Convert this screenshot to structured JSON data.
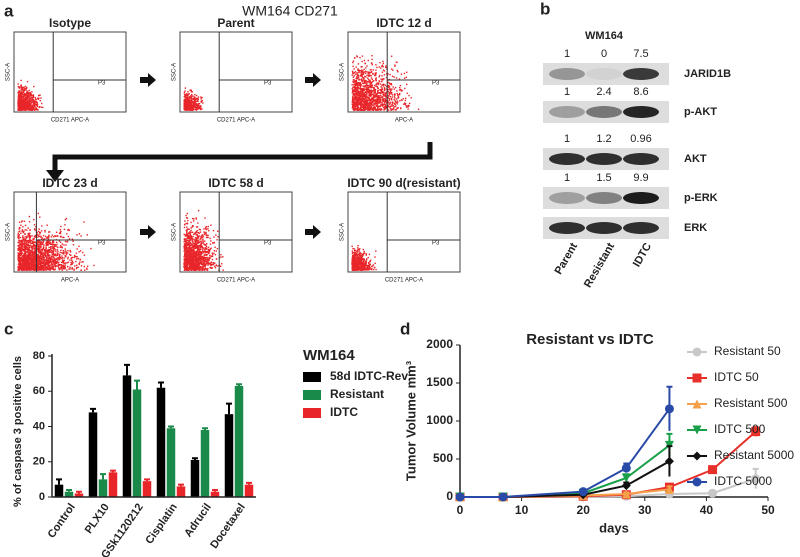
{
  "panel_a": {
    "letter": "a",
    "title": "WM164 CD271",
    "gate": "P3",
    "y_label": "SSC-A",
    "plots": [
      {
        "label": "Isotype",
        "x_label": "CD271 APC-A"
      },
      {
        "label": "Parent",
        "x_label": "CD271 APC-A"
      },
      {
        "label": "IDTC 12 d",
        "x_label": "APC-A"
      },
      {
        "label": "IDTC 23 d",
        "x_label": "APC-A"
      },
      {
        "label": "IDTC 58 d",
        "x_label": "CD271 APC-A"
      },
      {
        "label": "IDTC 90 d(resistant)",
        "x_label": "CD271 APC-A"
      }
    ]
  },
  "panel_b": {
    "letter": "b",
    "title": "WM164",
    "lanes": [
      "Parent",
      "Resistant",
      "IDTC"
    ],
    "rows": [
      {
        "label": "JARID1B",
        "values": [
          1,
          0,
          7.5
        ]
      },
      {
        "label": "p-AKT",
        "values": [
          1,
          2.4,
          8.6
        ]
      },
      {
        "label": "AKT",
        "values": [
          1,
          1.2,
          0.96
        ]
      },
      {
        "label": "p-ERK",
        "values": [
          1,
          1.5,
          9.9
        ]
      },
      {
        "label": "ERK"
      }
    ]
  },
  "chart_data": [
    {
      "type": "bar",
      "panel": "c",
      "legend_title": "WM164",
      "y_label": "% of caspase 3 positive cells",
      "categories": [
        "Control",
        "PLX10",
        "GSk1120212",
        "Cisplatin",
        "Adrucil",
        "Docetaxel"
      ],
      "ylim": [
        0,
        80
      ],
      "yticks": [
        0,
        20,
        40,
        60,
        80
      ],
      "series": [
        {
          "name": "58d IDTC-Rev",
          "color": "#000000",
          "values": [
            7,
            48,
            69,
            62,
            21,
            47
          ],
          "errors": [
            3,
            2,
            6,
            3,
            1,
            6
          ]
        },
        {
          "name": "Resistant",
          "color": "#1a8a4a",
          "values": [
            3,
            10,
            61,
            39,
            38,
            63
          ],
          "errors": [
            1,
            3,
            5,
            1,
            1,
            1
          ]
        },
        {
          "name": "IDTC",
          "color": "#e8262a",
          "values": [
            2,
            14,
            9,
            6,
            3,
            7
          ],
          "errors": [
            1,
            1,
            1,
            1,
            1,
            1
          ]
        }
      ]
    },
    {
      "type": "line",
      "panel": "d",
      "title": "Resistant vs IDTC",
      "x_label": "days",
      "y_label": "Tumor Volume mm³",
      "xlim": [
        0,
        50
      ],
      "xticks": [
        0,
        10,
        20,
        30,
        40,
        50
      ],
      "ylim": [
        0,
        2000
      ],
      "yticks": [
        0,
        500,
        1000,
        1500,
        2000
      ],
      "series": [
        {
          "name": "Resistant 50",
          "color": "#c8c8c8",
          "marker": "circle",
          "x": [
            0,
            7,
            20,
            27,
            34,
            41,
            48
          ],
          "values": [
            0,
            0,
            0,
            10,
            40,
            50,
            240
          ],
          "errors": [
            0,
            0,
            0,
            10,
            20,
            30,
            130
          ]
        },
        {
          "name": "IDTC 50",
          "color": "#e8302a",
          "marker": "square",
          "x": [
            0,
            7,
            20,
            27,
            34,
            41,
            48
          ],
          "values": [
            0,
            0,
            10,
            30,
            130,
            360,
            860
          ],
          "errors": [
            0,
            0,
            5,
            10,
            30,
            20,
            60
          ]
        },
        {
          "name": "Resistant 500",
          "color": "#f5a04a",
          "marker": "triangle",
          "x": [
            0,
            7,
            20,
            27,
            34
          ],
          "values": [
            0,
            0,
            20,
            40,
            100
          ],
          "errors": [
            0,
            0,
            10,
            20,
            40
          ]
        },
        {
          "name": "IDTC 500",
          "color": "#1aa04a",
          "marker": "triangle-down",
          "x": [
            0,
            7,
            20,
            27,
            34
          ],
          "values": [
            0,
            0,
            50,
            250,
            680
          ],
          "errors": [
            0,
            0,
            20,
            50,
            150
          ]
        },
        {
          "name": "Resistant 5000",
          "color": "#111111",
          "marker": "diamond",
          "x": [
            0,
            7,
            20,
            27,
            34
          ],
          "values": [
            0,
            0,
            30,
            150,
            470
          ],
          "errors": [
            0,
            0,
            20,
            40,
            200
          ]
        },
        {
          "name": "IDTC 5000",
          "color": "#2a4aa8",
          "marker": "circle",
          "x": [
            0,
            7,
            20,
            27,
            34
          ],
          "values": [
            0,
            0,
            70,
            380,
            1160
          ],
          "errors": [
            0,
            0,
            30,
            60,
            290
          ]
        }
      ]
    }
  ]
}
